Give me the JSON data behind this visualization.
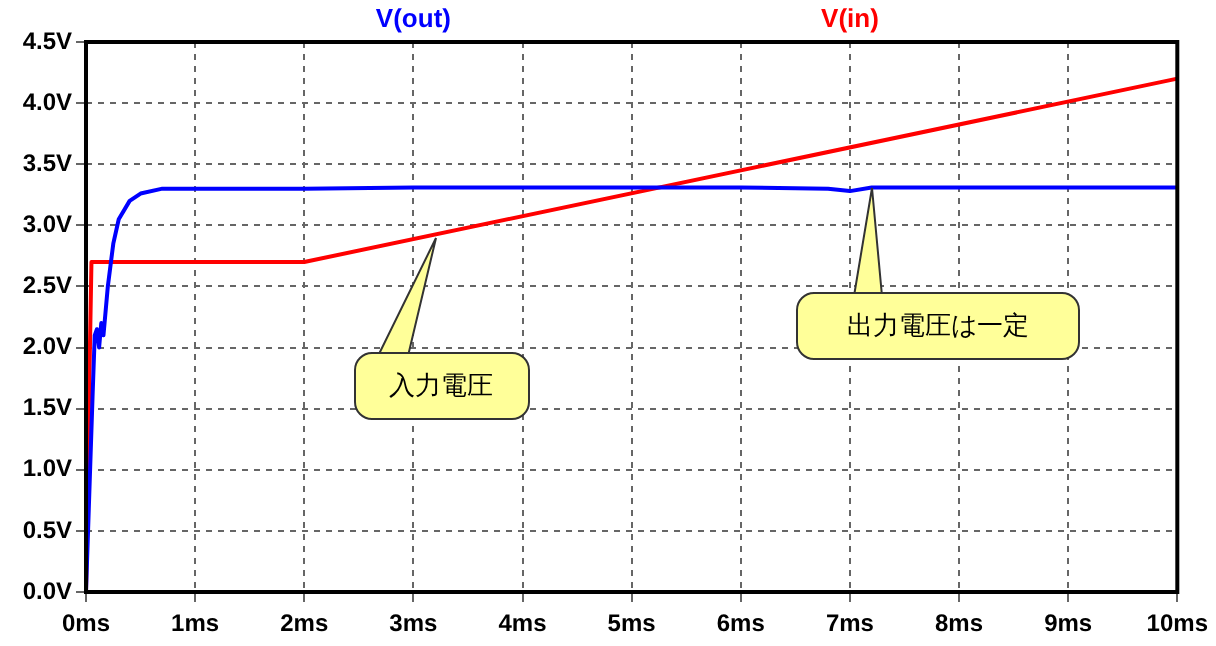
{
  "chart_data": {
    "type": "line",
    "xlim": [
      0,
      10
    ],
    "ylim": [
      0,
      4.5
    ],
    "xticks": [
      {
        "value": 0,
        "label": "0ms"
      },
      {
        "value": 1,
        "label": "1ms"
      },
      {
        "value": 2,
        "label": "2ms"
      },
      {
        "value": 3,
        "label": "3ms"
      },
      {
        "value": 4,
        "label": "4ms"
      },
      {
        "value": 5,
        "label": "5ms"
      },
      {
        "value": 6,
        "label": "6ms"
      },
      {
        "value": 7,
        "label": "7ms"
      },
      {
        "value": 8,
        "label": "8ms"
      },
      {
        "value": 9,
        "label": "9ms"
      },
      {
        "value": 10,
        "label": "10ms"
      }
    ],
    "yticks": [
      {
        "value": 0,
        "label": "0.0V"
      },
      {
        "value": 0.5,
        "label": "0.5V"
      },
      {
        "value": 1,
        "label": "1.0V"
      },
      {
        "value": 1.5,
        "label": "1.5V"
      },
      {
        "value": 2,
        "label": "2.0V"
      },
      {
        "value": 2.5,
        "label": "2.5V"
      },
      {
        "value": 3,
        "label": "3.0V"
      },
      {
        "value": 3.5,
        "label": "3.5V"
      },
      {
        "value": 4,
        "label": "4.0V"
      },
      {
        "value": 4.5,
        "label": "4.5V"
      }
    ],
    "grid": true,
    "legend": "top",
    "marker": "none",
    "line_style": "solid",
    "series": [
      {
        "name": "V(out)",
        "color": "#0000ff",
        "x": [
          0,
          0.03,
          0.06,
          0.08,
          0.1,
          0.12,
          0.14,
          0.16,
          0.2,
          0.25,
          0.3,
          0.4,
          0.5,
          0.7,
          1,
          2,
          3,
          4,
          5,
          6,
          6.8,
          7,
          7.2,
          8,
          9,
          10
        ],
        "values": [
          0,
          0.8,
          1.6,
          2.1,
          2.15,
          2.0,
          2.2,
          2.1,
          2.5,
          2.85,
          3.05,
          3.2,
          3.26,
          3.3,
          3.3,
          3.3,
          3.31,
          3.31,
          3.31,
          3.31,
          3.3,
          3.28,
          3.31,
          3.31,
          3.31,
          3.31
        ]
      },
      {
        "name": "V(in)",
        "color": "#ff0000",
        "x": [
          0,
          0.02,
          0.05,
          2,
          10
        ],
        "values": [
          0,
          1.2,
          2.7,
          2.7,
          4.2
        ]
      }
    ],
    "annotations": [
      {
        "text": "入力電圧",
        "x": 3.2,
        "y": 2.9
      },
      {
        "text": "出力電圧は一定",
        "x": 7.2,
        "y": 3.3
      }
    ]
  }
}
